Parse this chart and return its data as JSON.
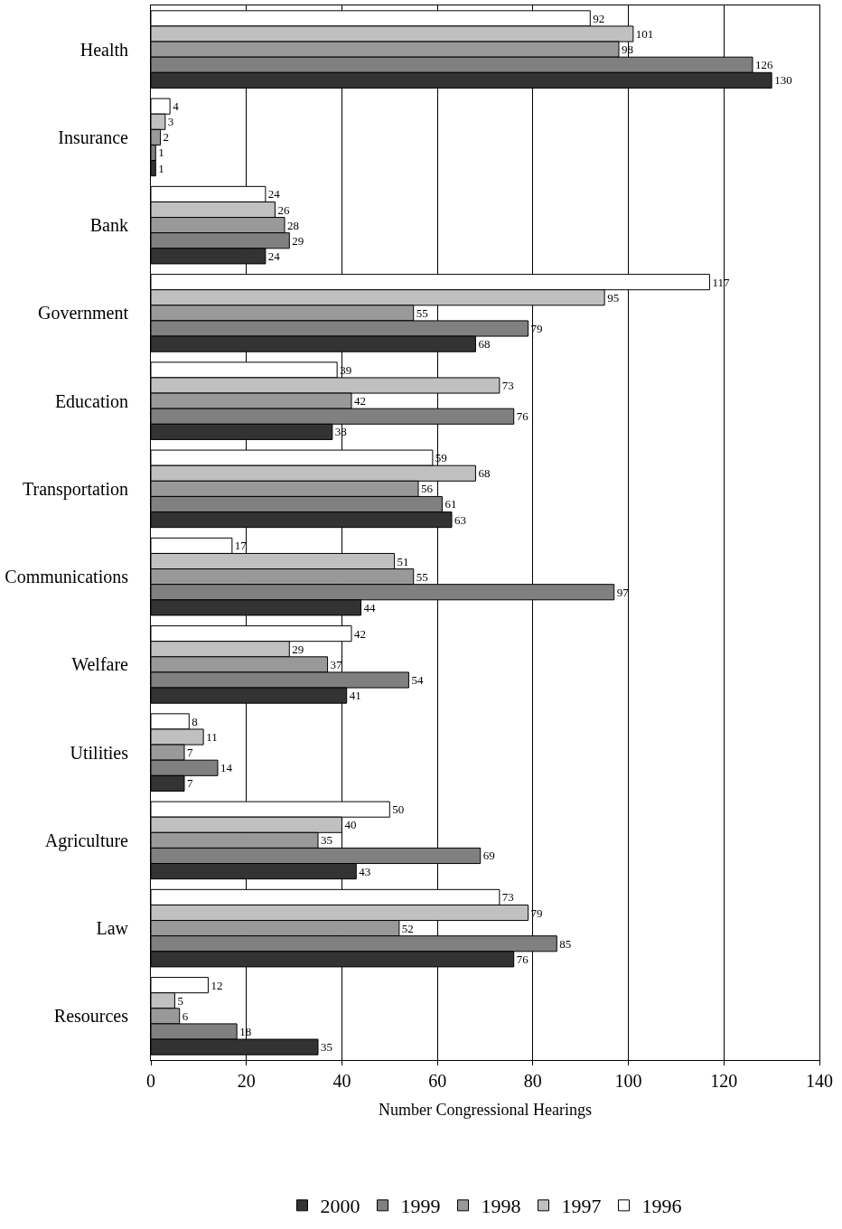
{
  "chart_data": {
    "type": "bar",
    "orientation": "horizontal",
    "xlabel": "Number Congressional Hearings",
    "categories": [
      "Health",
      "Insurance",
      "Bank",
      "Government",
      "Education",
      "Transportation",
      "Communications",
      "Welfare",
      "Utilities",
      "Agriculture",
      "Law",
      "Resources"
    ],
    "series": [
      {
        "name": "2000",
        "color": "#333333",
        "values": [
          130,
          1,
          24,
          68,
          38,
          63,
          44,
          41,
          7,
          43,
          76,
          35
        ]
      },
      {
        "name": "1999",
        "color": "#808080",
        "values": [
          126,
          1,
          29,
          79,
          76,
          61,
          97,
          54,
          14,
          69,
          85,
          18
        ]
      },
      {
        "name": "1998",
        "color": "#999999",
        "values": [
          98,
          2,
          28,
          55,
          42,
          56,
          55,
          37,
          7,
          35,
          52,
          6
        ]
      },
      {
        "name": "1997",
        "color": "#c0c0c0",
        "values": [
          101,
          3,
          26,
          95,
          73,
          68,
          51,
          29,
          11,
          40,
          79,
          5
        ]
      },
      {
        "name": "1996",
        "color": "#ffffff",
        "values": [
          92,
          4,
          24,
          117,
          39,
          59,
          17,
          42,
          8,
          50,
          73,
          12
        ]
      }
    ],
    "xlim": [
      0,
      140
    ],
    "xticks": [
      0,
      20,
      40,
      60,
      80,
      100,
      120,
      140
    ],
    "grid": "x",
    "legend": "bottom",
    "data_labels": true
  }
}
